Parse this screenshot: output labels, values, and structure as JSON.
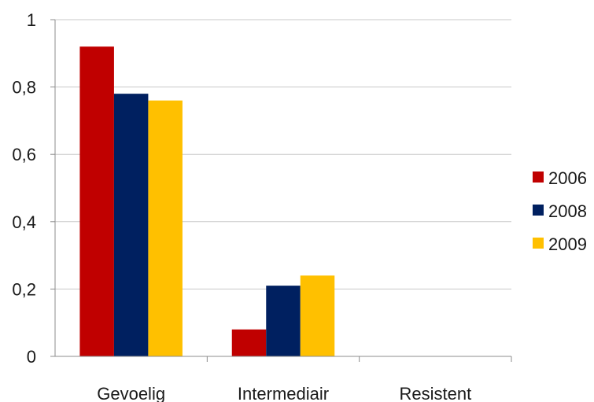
{
  "chart_data": {
    "type": "bar",
    "title": "",
    "xlabel": "",
    "ylabel": "",
    "categories": [
      "Gevoelig",
      "Intermediair",
      "Resistent"
    ],
    "series": [
      {
        "name": "2006",
        "color": "#c00000",
        "values": [
          0.92,
          0.08,
          0
        ]
      },
      {
        "name": "2008",
        "color": "#002060",
        "values": [
          0.78,
          0.21,
          0
        ]
      },
      {
        "name": "2009",
        "color": "#ffc000",
        "values": [
          0.76,
          0.24,
          0
        ]
      }
    ],
    "ylim": [
      0,
      1
    ],
    "yticks": [
      0,
      0.2,
      0.4,
      0.6,
      0.8,
      1
    ],
    "ytick_labels": [
      "0",
      "0,2",
      "0,4",
      "0,6",
      "0,8",
      "1"
    ],
    "grid": true,
    "legend_position": "right"
  }
}
